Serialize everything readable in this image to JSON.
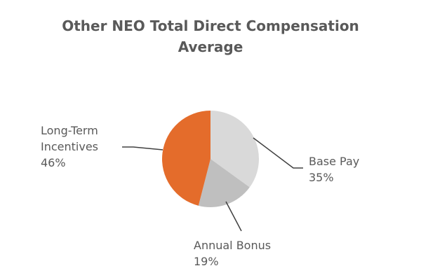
{
  "chart_data": {
    "type": "pie",
    "title_lines": [
      "Other NEO Total Direct Compensation",
      "Average"
    ],
    "slices": [
      {
        "label": "Base Pay",
        "label_lines": [
          "Base Pay"
        ],
        "value": 35,
        "value_label": "35%",
        "color": "#d9d9d9"
      },
      {
        "label": "Annual Bonus",
        "label_lines": [
          "Annual Bonus"
        ],
        "value": 19,
        "value_label": "19%",
        "color": "#bfbfbf"
      },
      {
        "label": "Long-Term Incentives",
        "label_lines": [
          "Long-Term",
          "Incentives"
        ],
        "value": 46,
        "value_label": "46%",
        "color": "#e46c2b"
      }
    ],
    "start_angle_deg": 0,
    "direction": "clockwise",
    "leader_line_color": "#404040"
  }
}
